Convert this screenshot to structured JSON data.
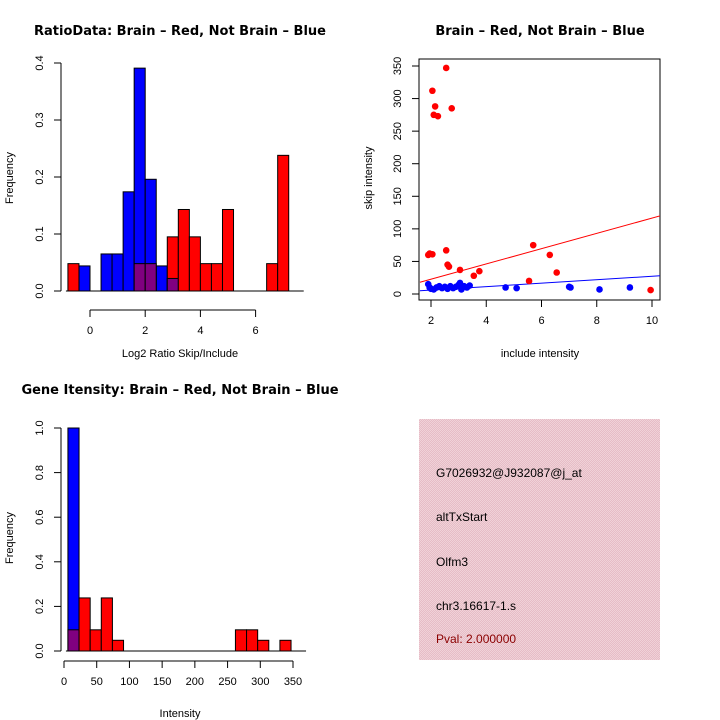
{
  "colors": {
    "brain": "#ff0000",
    "not_brain": "#0000ff",
    "overlap": "#800080",
    "info_bg": "#e8c4cc",
    "pval_text": "#8b0000"
  },
  "chart_data": [
    {
      "id": "ratio-hist",
      "type": "bar",
      "title": "RatioData: Brain – Red, Not Brain – Blue",
      "xlabel": "Log2 Ratio Skip/Include",
      "ylabel": "Frequency",
      "xlim": [
        -0.8,
        7.4
      ],
      "ylim": [
        0,
        0.4
      ],
      "xticks": [
        0,
        2,
        4,
        6
      ],
      "yticks": [
        0.0,
        0.1,
        0.2,
        0.3,
        0.4
      ],
      "ytick_labels": [
        "0.0",
        "0.1",
        "0.2",
        "0.3",
        "0.4"
      ],
      "series": [
        {
          "name": "Not Brain",
          "color": "blue",
          "bins": [
            {
              "x0": -0.4,
              "x1": 0.0,
              "value": 0.044
            },
            {
              "x0": 0.4,
              "x1": 0.8,
              "value": 0.065
            },
            {
              "x0": 0.8,
              "x1": 1.2,
              "value": 0.065
            },
            {
              "x0": 1.2,
              "x1": 1.6,
              "value": 0.174
            },
            {
              "x0": 1.6,
              "x1": 2.0,
              "value": 0.391
            },
            {
              "x0": 2.0,
              "x1": 2.4,
              "value": 0.196
            },
            {
              "x0": 2.4,
              "x1": 2.8,
              "value": 0.044
            },
            {
              "x0": 2.8,
              "x1": 3.2,
              "value": 0.022
            }
          ]
        },
        {
          "name": "Brain",
          "color": "red",
          "bins": [
            {
              "x0": -0.8,
              "x1": -0.4,
              "value": 0.048
            },
            {
              "x0": 1.6,
              "x1": 2.0,
              "value": 0.048
            },
            {
              "x0": 2.0,
              "x1": 2.4,
              "value": 0.048
            },
            {
              "x0": 2.8,
              "x1": 3.2,
              "value": 0.095
            },
            {
              "x0": 3.2,
              "x1": 3.6,
              "value": 0.143
            },
            {
              "x0": 3.6,
              "x1": 4.0,
              "value": 0.095
            },
            {
              "x0": 4.0,
              "x1": 4.4,
              "value": 0.048
            },
            {
              "x0": 4.4,
              "x1": 4.8,
              "value": 0.048
            },
            {
              "x0": 4.8,
              "x1": 5.2,
              "value": 0.143
            },
            {
              "x0": 6.4,
              "x1": 6.8,
              "value": 0.048
            },
            {
              "x0": 6.8,
              "x1": 7.2,
              "value": 0.238
            }
          ]
        }
      ]
    },
    {
      "id": "scatter",
      "type": "scatter",
      "title": "Brain – Red, Not Brain – Blue",
      "xlabel": "include intensity",
      "ylabel": "skip intensity",
      "xlim": [
        1.6,
        10.3
      ],
      "ylim": [
        -10,
        360
      ],
      "xticks": [
        2,
        4,
        6,
        8,
        10
      ],
      "yticks": [
        0,
        50,
        100,
        150,
        200,
        250,
        300,
        350
      ],
      "series": [
        {
          "name": "Brain",
          "color": "red",
          "points": [
            [
              2.05,
              312
            ],
            [
              2.55,
              347
            ],
            [
              2.15,
              288
            ],
            [
              2.75,
              285
            ],
            [
              2.1,
              275
            ],
            [
              2.25,
              273
            ],
            [
              1.9,
              60
            ],
            [
              1.95,
              62
            ],
            [
              2.05,
              61
            ],
            [
              2.55,
              67
            ],
            [
              2.6,
              45
            ],
            [
              2.65,
              42
            ],
            [
              3.05,
              37
            ],
            [
              3.55,
              28
            ],
            [
              3.75,
              35
            ],
            [
              5.7,
              75
            ],
            [
              6.3,
              60
            ],
            [
              6.55,
              33
            ],
            [
              5.55,
              20
            ],
            [
              9.95,
              6
            ]
          ],
          "fit": [
            [
              1.6,
              18
            ],
            [
              10.3,
              120
            ]
          ]
        },
        {
          "name": "Not Brain",
          "color": "blue",
          "points": [
            [
              1.9,
              15
            ],
            [
              1.95,
              10
            ],
            [
              2.0,
              8
            ],
            [
              2.1,
              7
            ],
            [
              2.2,
              10
            ],
            [
              2.3,
              12
            ],
            [
              2.4,
              9
            ],
            [
              2.5,
              11
            ],
            [
              2.6,
              8
            ],
            [
              2.7,
              12
            ],
            [
              2.8,
              9
            ],
            [
              2.9,
              11
            ],
            [
              3.0,
              14
            ],
            [
              3.05,
              17
            ],
            [
              3.1,
              7
            ],
            [
              3.2,
              12
            ],
            [
              3.3,
              10
            ],
            [
              3.4,
              13
            ],
            [
              4.7,
              10
            ],
            [
              5.1,
              9
            ],
            [
              7.0,
              11
            ],
            [
              7.05,
              10
            ],
            [
              8.1,
              7
            ],
            [
              9.2,
              10
            ]
          ],
          "fit": [
            [
              1.6,
              5
            ],
            [
              10.3,
              28
            ]
          ]
        }
      ]
    },
    {
      "id": "intensity-hist",
      "type": "bar",
      "title": "Gene Itensity: Brain – Red, Not Brain – Blue",
      "xlabel": "Intensity",
      "ylabel": "Frequency",
      "xlim": [
        0,
        350
      ],
      "ylim": [
        0,
        1.0
      ],
      "xticks": [
        0,
        50,
        100,
        150,
        200,
        250,
        300,
        350
      ],
      "yticks": [
        0.0,
        0.2,
        0.4,
        0.6,
        0.8,
        1.0
      ],
      "ytick_labels": [
        "0.0",
        "0.2",
        "0.4",
        "0.6",
        "0.8",
        "1.0"
      ],
      "series": [
        {
          "name": "Not Brain",
          "color": "blue",
          "bins": [
            {
              "x0": 6,
              "x1": 23,
              "value": 1.0
            }
          ]
        },
        {
          "name": "Brain",
          "color": "red",
          "bins": [
            {
              "x0": 6,
              "x1": 23,
              "value": 0.095
            },
            {
              "x0": 23,
              "x1": 40,
              "value": 0.238
            },
            {
              "x0": 40,
              "x1": 57,
              "value": 0.095
            },
            {
              "x0": 57,
              "x1": 74,
              "value": 0.238
            },
            {
              "x0": 74,
              "x1": 91,
              "value": 0.048
            },
            {
              "x0": 262,
              "x1": 279,
              "value": 0.095
            },
            {
              "x0": 279,
              "x1": 296,
              "value": 0.095
            },
            {
              "x0": 296,
              "x1": 313,
              "value": 0.048
            },
            {
              "x0": 330,
              "x1": 347,
              "value": 0.048
            }
          ]
        }
      ]
    }
  ],
  "info_panel": {
    "probe_id": "G7026932@J932087@j_at",
    "event_type": "altTxStart",
    "gene": "Olfm3",
    "location": "chr3.16617-1.s",
    "pval": "Pval: 2.000000"
  }
}
